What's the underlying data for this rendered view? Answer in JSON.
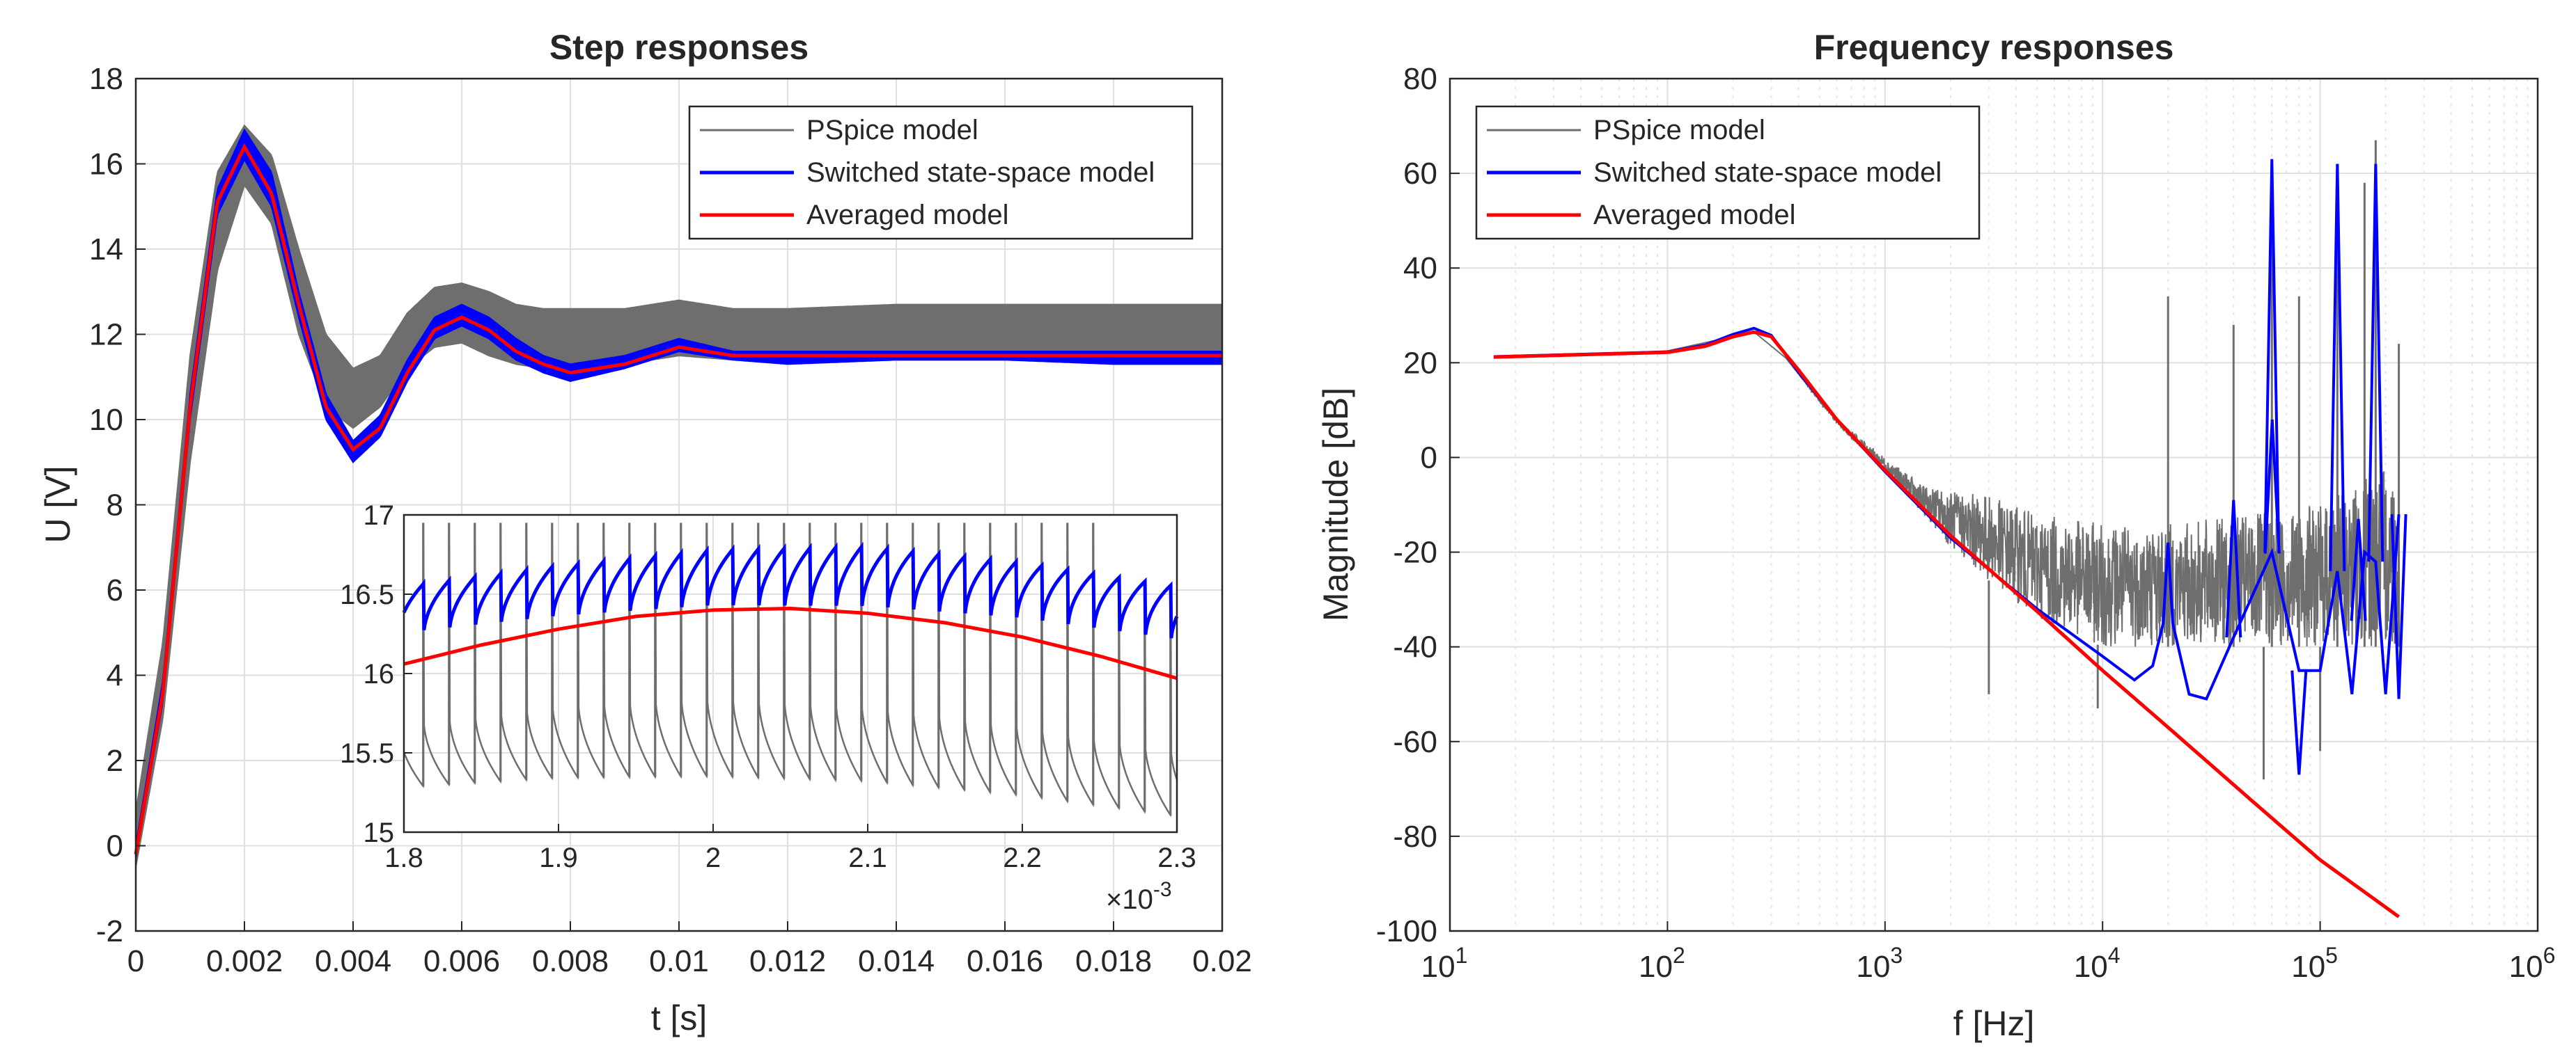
{
  "chart_data": [
    {
      "type": "line",
      "title": "Step responses",
      "xlabel": "t [s]",
      "ylabel": "U [V]",
      "xlim": [
        0,
        0.02
      ],
      "ylim": [
        -2,
        18
      ],
      "grid": true,
      "legend_position": "top-right",
      "xticks": [
        "0",
        "0.002",
        "0.004",
        "0.006",
        "0.008",
        "0.01",
        "0.012",
        "0.014",
        "0.016",
        "0.018",
        "0.02"
      ],
      "yticks": [
        "-2",
        "0",
        "2",
        "4",
        "6",
        "8",
        "10",
        "12",
        "14",
        "16",
        "18"
      ],
      "series": [
        {
          "name": "PSpice model",
          "color": "#6e6e6e",
          "note": "band between lower and upper envelope",
          "x": [
            0,
            0.0005,
            0.001,
            0.0015,
            0.002,
            0.0025,
            0.003,
            0.0035,
            0.004,
            0.0045,
            0.005,
            0.0055,
            0.006,
            0.0065,
            0.007,
            0.0075,
            0.008,
            0.009,
            0.01,
            0.011,
            0.012,
            0.014,
            0.016,
            0.018,
            0.02
          ],
          "lower": [
            -0.5,
            3.0,
            9.0,
            13.5,
            15.5,
            14.6,
            12.0,
            10.3,
            9.8,
            10.3,
            11.2,
            11.7,
            11.8,
            11.5,
            11.3,
            11.2,
            11.1,
            11.3,
            11.5,
            11.4,
            11.4,
            11.4,
            11.4,
            11.4,
            11.4
          ],
          "upper": [
            0.8,
            4.8,
            11.5,
            15.8,
            16.9,
            16.2,
            14.0,
            12.0,
            11.2,
            11.5,
            12.5,
            13.1,
            13.2,
            13.0,
            12.7,
            12.6,
            12.6,
            12.6,
            12.8,
            12.6,
            12.6,
            12.7,
            12.7,
            12.7,
            12.7
          ]
        },
        {
          "name": "Switched state-space model",
          "color": "#0000ff",
          "x": [
            0,
            0.0005,
            0.001,
            0.0015,
            0.002,
            0.0025,
            0.003,
            0.0035,
            0.004,
            0.0045,
            0.005,
            0.0055,
            0.006,
            0.0065,
            0.007,
            0.0075,
            0.008,
            0.009,
            0.01,
            0.011,
            0.012,
            0.014,
            0.016,
            0.018,
            0.02
          ],
          "lower": [
            -0.3,
            3.4,
            10.0,
            14.8,
            16.1,
            15.0,
            12.4,
            10.0,
            9.0,
            9.6,
            10.9,
            11.9,
            12.2,
            11.9,
            11.4,
            11.1,
            10.9,
            11.2,
            11.6,
            11.4,
            11.3,
            11.4,
            11.4,
            11.3,
            11.3
          ],
          "upper": [
            0.0,
            3.9,
            10.6,
            15.4,
            16.8,
            15.8,
            13.0,
            10.6,
            9.5,
            10.1,
            11.4,
            12.4,
            12.7,
            12.4,
            11.9,
            11.5,
            11.3,
            11.5,
            11.9,
            11.6,
            11.6,
            11.6,
            11.6,
            11.6,
            11.6
          ]
        },
        {
          "name": "Averaged model",
          "color": "#ff0000",
          "x": [
            0,
            0.0005,
            0.001,
            0.0015,
            0.002,
            0.0025,
            0.003,
            0.0035,
            0.004,
            0.0045,
            0.005,
            0.0055,
            0.006,
            0.0065,
            0.007,
            0.0075,
            0.008,
            0.009,
            0.01,
            0.011,
            0.012,
            0.014,
            0.016,
            0.018,
            0.02
          ],
          "values": [
            -0.2,
            3.6,
            10.3,
            15.1,
            16.4,
            15.3,
            12.7,
            10.3,
            9.3,
            9.8,
            11.1,
            12.1,
            12.4,
            12.1,
            11.6,
            11.3,
            11.1,
            11.3,
            11.7,
            11.5,
            11.5,
            11.5,
            11.5,
            11.5,
            11.5
          ]
        }
      ],
      "inset": {
        "xlim": [
          1.8,
          2.3
        ],
        "ylim": [
          15,
          17
        ],
        "xticks": [
          "1.8",
          "1.9",
          "2",
          "2.1",
          "2.2",
          "2.3"
        ],
        "yticks": [
          "15",
          "15.5",
          "16",
          "16.5",
          "17"
        ],
        "x_exponent_base": "×10",
        "x_exponent_power": "-3",
        "switching_period": 0.016667,
        "pspice": {
          "x": [
            1.8,
            1.9,
            2.0,
            2.1,
            2.2,
            2.3
          ],
          "trough": [
            15.28,
            15.34,
            15.35,
            15.32,
            15.23,
            15.1
          ],
          "peak": [
            15.72,
            15.85,
            15.9,
            15.85,
            15.72,
            15.55
          ],
          "spike": 16.95
        },
        "switched": {
          "x": [
            1.8,
            1.9,
            2.0,
            2.1,
            2.2,
            2.3
          ],
          "trough": [
            16.2,
            16.3,
            16.36,
            16.35,
            16.28,
            16.15
          ],
          "peak": [
            16.55,
            16.68,
            16.78,
            16.8,
            16.7,
            16.55
          ]
        },
        "averaged": {
          "x": [
            1.8,
            1.85,
            1.9,
            1.95,
            2.0,
            2.05,
            2.1,
            2.15,
            2.2,
            2.25,
            2.3
          ],
          "values": [
            16.06,
            16.18,
            16.28,
            16.36,
            16.4,
            16.41,
            16.38,
            16.32,
            16.23,
            16.11,
            15.97
          ]
        }
      }
    },
    {
      "type": "line",
      "title": "Frequency responses",
      "xlabel": "f [Hz]",
      "ylabel": "Magnitude [dB]",
      "xscale": "log",
      "xlim": [
        10,
        1000000
      ],
      "ylim": [
        -100,
        80
      ],
      "grid": true,
      "legend_position": "top-left",
      "xtick_base": "10",
      "xtick_powers": [
        "1",
        "2",
        "3",
        "4",
        "5",
        "6"
      ],
      "yticks": [
        "-100",
        "-80",
        "-60",
        "-40",
        "-20",
        "0",
        "20",
        "40",
        "60",
        "80"
      ],
      "series": [
        {
          "name": "PSpice model",
          "color": "#6e6e6e",
          "note": "noisy band",
          "f": [
            15.9,
            100,
            250,
            350,
            600,
            1000,
            1500,
            2000,
            3000,
            5000,
            10000,
            20000,
            50000,
            100000,
            200000,
            230000
          ],
          "lower": [
            21,
            22.5,
            26.5,
            21,
            7,
            -3,
            -12,
            -19,
            -26,
            -34,
            -40,
            -40,
            -40,
            -40,
            -40,
            -40
          ],
          "upper": [
            21,
            22.5,
            26.5,
            21,
            8,
            0,
            -6,
            -7,
            -8,
            -12,
            -14,
            -14,
            -12,
            -10,
            -2,
            -2
          ],
          "spikes": [
            {
              "f": 3000,
              "db": -50
            },
            {
              "f": 9500,
              "db": -53
            },
            {
              "f": 20000,
              "db": 34
            },
            {
              "f": 40000,
              "db": 28
            },
            {
              "f": 55000,
              "db": -68
            },
            {
              "f": 60000,
              "db": 60
            },
            {
              "f": 80000,
              "db": 34
            },
            {
              "f": 100000,
              "db": -62
            },
            {
              "f": 120000,
              "db": 55
            },
            {
              "f": 160000,
              "db": 58
            },
            {
              "f": 180000,
              "db": 67
            },
            {
              "f": 230000,
              "db": 24
            }
          ]
        },
        {
          "name": "Switched state-space model",
          "color": "#0000ff",
          "f": [
            15.9,
            100,
            150,
            200,
            250,
            300,
            400,
            600,
            1000,
            2000,
            5000,
            10000,
            14000,
            17000,
            19000,
            20000,
            21000,
            25000,
            30000,
            40000,
            60000,
            80000,
            100000,
            120000,
            140000,
            160000,
            180000,
            200000,
            230000
          ],
          "values": [
            21.3,
            22.3,
            23.8,
            26,
            27.3,
            25.8,
            18,
            8,
            -3,
            -17,
            -32,
            -42,
            -47,
            -44,
            -35,
            -18,
            -35,
            -50,
            -51,
            -38,
            -20,
            -45,
            -45,
            -24,
            -50,
            -20,
            -22,
            -50,
            -12
          ],
          "peaks": [
            {
              "f": 40000,
              "db": -9
            },
            {
              "f": 60000,
              "db": 63
            },
            {
              "f": 60200,
              "db": 8
            },
            {
              "f": 80000,
              "db": -67
            },
            {
              "f": 120000,
              "db": 62
            },
            {
              "f": 150000,
              "db": -13
            },
            {
              "f": 180000,
              "db": 62
            },
            {
              "f": 230000,
              "db": -51
            }
          ]
        },
        {
          "name": "Averaged model",
          "color": "#ff0000",
          "f": [
            15.9,
            100,
            150,
            200,
            250,
            300,
            400,
            600,
            1000,
            2000,
            5000,
            10000,
            20000,
            50000,
            100000,
            230000
          ],
          "values": [
            21.2,
            22.2,
            23.5,
            25.5,
            26.5,
            25.5,
            18.5,
            8,
            -2.7,
            -16.5,
            -32.5,
            -45,
            -57,
            -73,
            -85,
            -97
          ]
        }
      ]
    }
  ]
}
